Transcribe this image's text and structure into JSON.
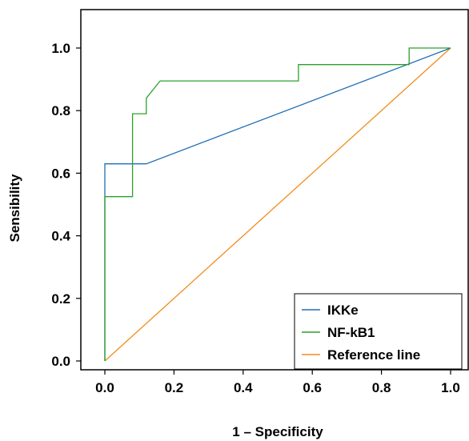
{
  "chart_data": {
    "type": "line",
    "xlabel": "1 – Specificity",
    "ylabel": "Sensibility",
    "xlim": [
      0,
      1.0
    ],
    "ylim": [
      0,
      1.0
    ],
    "x_ticks": [
      "0.0",
      "0.2",
      "0.4",
      "0.6",
      "0.8",
      "1.0"
    ],
    "y_ticks": [
      "0.0",
      "0.2",
      "0.4",
      "0.6",
      "0.8",
      "1.0"
    ],
    "grid": false,
    "legend_position": "bottom-right",
    "series": [
      {
        "name": "IKKe",
        "color": "#1f6fb4",
        "x": [
          0,
          0,
          0.12,
          1.0
        ],
        "y": [
          0,
          0.63,
          0.63,
          1.0
        ]
      },
      {
        "name": "NF-kB1",
        "color": "#2ca02c",
        "x": [
          0,
          0,
          0.08,
          0.08,
          0.12,
          0.12,
          0.16,
          0.56,
          0.56,
          0.88,
          0.88,
          1.0
        ],
        "y": [
          0,
          0.525,
          0.525,
          0.79,
          0.79,
          0.84,
          0.895,
          0.895,
          0.947,
          0.947,
          1.0,
          1.0
        ]
      },
      {
        "name": "Reference line",
        "color": "#f28c1b",
        "x": [
          0,
          1.0
        ],
        "y": [
          0,
          1.0
        ]
      }
    ]
  }
}
